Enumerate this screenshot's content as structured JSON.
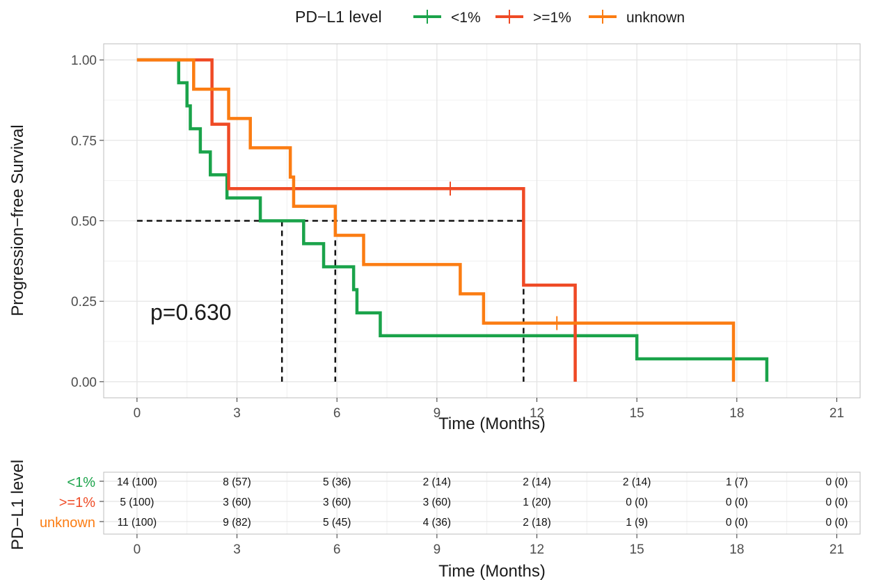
{
  "colors": {
    "low": "#1aa34a",
    "high": "#ef4a25",
    "unknown": "#fb7c12",
    "grid": "#e3e3e3",
    "panel_border": "#bdbdbd",
    "text": "#4d4d4d",
    "title": "#1a1a1a"
  },
  "legend": {
    "title": "PD−L1 level",
    "entries": [
      "<1%",
      ">=1%",
      "unknown"
    ]
  },
  "annotation": "p=0.630",
  "risk_table": {
    "ylabel": "PD−L1 level",
    "xlabel": "Time (Months)",
    "times": [
      0,
      3,
      6,
      9,
      12,
      15,
      18,
      21
    ],
    "rows": [
      {
        "label": "<1%",
        "cells": [
          "14 (100)",
          "8 (57)",
          "5 (36)",
          "2 (14)",
          "2 (14)",
          "2 (14)",
          "1 (7)",
          "0 (0)"
        ]
      },
      {
        "label": ">=1%",
        "cells": [
          "5 (100)",
          "3 (60)",
          "3 (60)",
          "3 (60)",
          "1 (20)",
          "0 (0)",
          "0 (0)",
          "0 (0)"
        ]
      },
      {
        "label": "unknown",
        "cells": [
          "11 (100)",
          "9 (82)",
          "5 (45)",
          "4 (36)",
          "2 (18)",
          "1 (9)",
          "0 (0)",
          "0 (0)"
        ]
      }
    ]
  },
  "chart_data": {
    "type": "line",
    "subtype": "kaplan-meier step",
    "xlabel": "Time (Months)",
    "ylabel": "Progression−free Survival",
    "xlim": [
      -1,
      21.7
    ],
    "ylim": [
      -0.05,
      1.05
    ],
    "xticks": [
      0,
      3,
      6,
      9,
      12,
      15,
      18,
      21
    ],
    "yticks": [
      "0.00",
      "0.25",
      "0.50",
      "0.75",
      "1.00"
    ],
    "grid": true,
    "legend_position": "top",
    "series": [
      {
        "name": "<1%",
        "color_key": "low",
        "steps": [
          [
            0,
            1.0
          ],
          [
            1.25,
            0.929
          ],
          [
            1.5,
            0.857
          ],
          [
            1.6,
            0.786
          ],
          [
            1.9,
            0.714
          ],
          [
            2.2,
            0.643
          ],
          [
            2.7,
            0.571
          ],
          [
            3.7,
            0.5
          ],
          [
            5.0,
            0.429
          ],
          [
            5.6,
            0.357
          ],
          [
            6.5,
            0.286
          ],
          [
            6.6,
            0.214
          ],
          [
            7.3,
            0.143
          ],
          [
            15.0,
            0.071
          ],
          [
            18.9,
            0.0
          ]
        ],
        "end": 18.9,
        "censored": []
      },
      {
        "name": ">=1%",
        "color_key": "high",
        "steps": [
          [
            0,
            1.0
          ],
          [
            2.25,
            0.8
          ],
          [
            2.75,
            0.6
          ],
          [
            11.6,
            0.3
          ],
          [
            13.15,
            0.0
          ]
        ],
        "end": 13.15,
        "censored": [
          [
            9.4,
            0.6
          ]
        ]
      },
      {
        "name": "unknown",
        "color_key": "unknown",
        "steps": [
          [
            0,
            1.0
          ],
          [
            1.7,
            0.909
          ],
          [
            2.75,
            0.818
          ],
          [
            3.4,
            0.727
          ],
          [
            4.6,
            0.636
          ],
          [
            4.7,
            0.545
          ],
          [
            5.95,
            0.455
          ],
          [
            6.8,
            0.364
          ],
          [
            9.7,
            0.273
          ],
          [
            10.4,
            0.182
          ],
          [
            17.9,
            0.0
          ]
        ],
        "end": 17.9,
        "censored": [
          [
            12.6,
            0.182
          ]
        ]
      }
    ],
    "median_lines": {
      "y": 0.5,
      "x": [
        4.35,
        5.95,
        11.6
      ]
    }
  }
}
